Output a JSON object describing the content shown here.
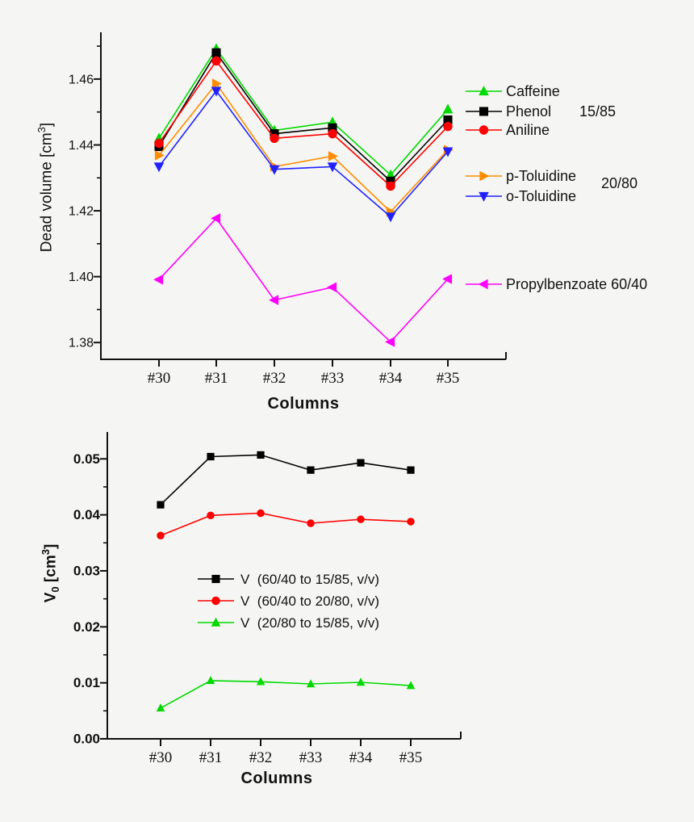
{
  "page": {
    "background_color": "#f5f6f3",
    "text_color": "#111111"
  },
  "chart_data": [
    {
      "type": "line",
      "title": "",
      "xlabel": "Columns",
      "ylabel": "Dead volume [cm3]",
      "ylabel_main": "Dead volume [cm",
      "ylabel_sup": "3",
      "ylabel_close": "]",
      "categories": [
        "#30",
        "#31",
        "#32",
        "#33",
        "#34",
        "#35"
      ],
      "yticks": [
        {
          "value": 1.38,
          "label": "1.38"
        },
        {
          "value": 1.4,
          "label": "1.40"
        },
        {
          "value": 1.42,
          "label": "1.42"
        },
        {
          "value": 1.44,
          "label": "1.44"
        },
        {
          "value": 1.46,
          "label": "1.46"
        }
      ],
      "y_minor_ticks": [
        1.39,
        1.41,
        1.43,
        1.45,
        1.47
      ],
      "ylim": [
        1.3749,
        1.4742
      ],
      "grid": false,
      "legend_position": "right",
      "group_labels": [
        "15/85",
        "20/80"
      ],
      "series": [
        {
          "name": "Caffeine",
          "color": "#00D900",
          "marker": "triangle-up",
          "values": [
            1.442,
            1.4692,
            1.4444,
            1.4469,
            1.4309,
            1.4508
          ]
        },
        {
          "name": "Phenol",
          "color": "#000000",
          "marker": "square",
          "values": [
            1.4395,
            1.468,
            1.4434,
            1.4452,
            1.429,
            1.4476
          ]
        },
        {
          "name": "Aniline",
          "color": "#FF0000",
          "marker": "circle",
          "values": [
            1.4405,
            1.4655,
            1.442,
            1.4434,
            1.4275,
            1.4456
          ]
        },
        {
          "name": "p-Toluidine",
          "color": "#FF8C00",
          "marker": "triangle-right",
          "values": [
            1.4368,
            1.4586,
            1.4334,
            1.4366,
            1.4197,
            1.4385
          ]
        },
        {
          "name": "o-Toluidine",
          "color": "#2121FF",
          "marker": "triangle-down",
          "values": [
            1.4334,
            1.4564,
            1.4326,
            1.4334,
            1.4182,
            1.438
          ]
        },
        {
          "name": "Propylbenzoate 60/40",
          "color": "#FF00FF",
          "marker": "triangle-left",
          "values": [
            1.3991,
            1.4177,
            1.3929,
            1.3968,
            1.3802,
            1.3993
          ]
        }
      ]
    },
    {
      "type": "line",
      "title": "",
      "xlabel": "Columns",
      "ylabel": "V0 [cm3]",
      "ylabel_v": "V",
      "ylabel_sub": "0",
      "ylabel_mid": " [cm",
      "ylabel_sup": "3",
      "ylabel_close": "]",
      "categories": [
        "#30",
        "#31",
        "#32",
        "#33",
        "#34",
        "#35"
      ],
      "yticks": [
        {
          "value": 0.0,
          "label": "0.00"
        },
        {
          "value": 0.01,
          "label": "0.01"
        },
        {
          "value": 0.02,
          "label": "0.02"
        },
        {
          "value": 0.03,
          "label": "0.03"
        },
        {
          "value": 0.04,
          "label": "0.04"
        },
        {
          "value": 0.05,
          "label": "0.05"
        }
      ],
      "y_minor_ticks": [
        0.005,
        0.015,
        0.025,
        0.035,
        0.045
      ],
      "ylim": [
        0,
        0.0548
      ],
      "grid": false,
      "legend_position": "inside-center",
      "series": [
        {
          "name": "V  (60/40 to 15/85, v/v)",
          "color": "#000000",
          "marker": "square",
          "values": [
            0.0418,
            0.0504,
            0.0507,
            0.048,
            0.0493,
            0.048
          ]
        },
        {
          "name": "V  (60/40 to 20/80, v/v)",
          "color": "#FF0000",
          "marker": "circle",
          "values": [
            0.0363,
            0.0399,
            0.0403,
            0.0385,
            0.0392,
            0.0388
          ]
        },
        {
          "name": "V  (20/80 to 15/85, v/v)",
          "color": "#00D900",
          "marker": "triangle-up",
          "values": [
            0.0055,
            0.0104,
            0.0102,
            0.0098,
            0.0101,
            0.0095
          ]
        }
      ]
    }
  ]
}
